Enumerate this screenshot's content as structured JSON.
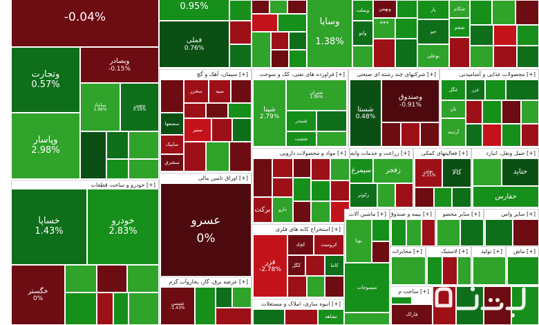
{
  "colors": {
    "green_light": "#2fa32a",
    "green": "#178f1b",
    "green_dark": "#0b4f14",
    "red": "#c4121b",
    "red_dark": "#6d0c12"
  },
  "tiles": {
    "t1": {
      "name": "",
      "pct": "-0.04%"
    },
    "t2": {
      "name": "وتجارت",
      "pct": "0.57%"
    },
    "t3": {
      "name": "وبصادر",
      "pct": "-0.15%"
    },
    "t4": {
      "name": "وپاسار",
      "pct": "2.98%"
    },
    "t5": {
      "name": "ساماد",
      "pct": "2.96%"
    },
    "t6": {
      "name": "ونوین",
      "pct": "0.54%"
    },
    "t7": {
      "name": "",
      "pct": "0.95%"
    },
    "t8": {
      "name": "فملی",
      "pct": "0.76%"
    },
    "t9": {
      "name": "وسایا",
      "pct": "1.38%"
    },
    "t10": {
      "name": "خساپا",
      "pct": "1.43%"
    },
    "t11": {
      "name": "خودرو",
      "pct": "2.83%"
    },
    "t12": {
      "name": "خگستر",
      "pct": "0%"
    },
    "t13": {
      "name": "عسرو",
      "pct": "0%"
    },
    "t14": {
      "name": "شپنا",
      "pct": "2.79%"
    },
    "t15": {
      "name": "شبندر",
      "pct": ""
    },
    "t16": {
      "name": "شتران",
      "pct": "1.99%"
    },
    "t17": {
      "name": "شفنت",
      "pct": ""
    },
    "t18": {
      "name": "شستا",
      "pct": "0.48%"
    },
    "t19": {
      "name": "وصندوق",
      "pct": "-0.91%"
    },
    "t20": {
      "name": "فزر",
      "pct": "-2.78%"
    },
    "t21": {
      "name": "کچاد",
      "pct": ""
    },
    "t22": {
      "name": "کرومیت",
      "pct": ""
    },
    "t23": {
      "name": "کگل",
      "pct": ""
    },
    "t24": {
      "name": "برکت",
      "pct": ""
    },
    "t25": {
      "name": "دارو",
      "pct": ""
    },
    "t26": {
      "name": "زفجر",
      "pct": ""
    },
    "t27": {
      "name": "سیمرغ",
      "pct": ""
    },
    "t28": {
      "name": "زکوثر",
      "pct": ""
    },
    "t29": {
      "name": "کالا",
      "pct": ""
    },
    "t30": {
      "name": "حتاید",
      "pct": ""
    },
    "t31": {
      "name": "حفارس",
      "pct": ""
    },
    "t32": {
      "name": "سخزر",
      "pct": ""
    },
    "t33": {
      "name": "سپه",
      "pct": ""
    },
    "t34": {
      "name": "سصفها",
      "pct": ""
    },
    "t35": {
      "name": "ساپیک",
      "pct": ""
    },
    "t36": {
      "name": "ستیر",
      "pct": ""
    },
    "t37": {
      "name": "سشرق",
      "pct": ""
    },
    "t38": {
      "name": "غگل",
      "pct": ""
    },
    "t39": {
      "name": "غزر",
      "pct": ""
    },
    "t40": {
      "name": "نان",
      "pct": ""
    },
    "t41": {
      "name": "آردینه",
      "pct": ""
    },
    "t42": {
      "name": "شکام",
      "pct": ""
    },
    "t43": {
      "name": "بوعلی",
      "pct": ""
    },
    "t44": {
      "name": "جم",
      "pct": ""
    },
    "t45": {
      "name": "شجم",
      "pct": ""
    },
    "t46": {
      "name": "پار",
      "pct": ""
    },
    "t47": {
      "name": "وبملت",
      "pct": ""
    },
    "t48": {
      "name": "ولتو",
      "pct": ""
    },
    "t49": {
      "name": "ونوتو",
      "pct": ""
    },
    "t50": {
      "name": "وبهمن",
      "pct": ""
    },
    "t51": {
      "name": "شمس",
      "pct": "-1.43%"
    },
    "t52": {
      "name": "تشاهد",
      "pct": ""
    },
    "t53": {
      "name": "منسوجات",
      "pct": ""
    },
    "t54": {
      "name": "فاراک",
      "pct": ""
    },
    "t55": {
      "name": "بویا",
      "pct": ""
    },
    "t56": {
      "name": "کاما",
      "pct": ""
    },
    "t57": {
      "name": "بوتن",
      "pct": "-2.11%"
    }
  },
  "sectors": {
    "s1": "[+] خودرو و ساخت قطعات",
    "s2": "[+] سیمان، آهک و گچ",
    "s3": "[+] فراورده های نفتی، کک و سوخت",
    "s4": "[+] شرکتهای چند رشته ای صنعتی",
    "s5": "[+] محصولات غذایی و آشامیدنی",
    "s6": "[+] اوراق تامین مالی",
    "s7": "[+] مواد و محصولات دارویی",
    "s8": "[+] زراعت و خدمات وابسته",
    "s9": "[+] فعالیتهای کمکی",
    "s10": "[+] حمل ونقل، انبارد",
    "s11": "[+] استخراج کانه های فلزی",
    "s12": "[+] عرضه برق، گاز، بخاروآب گرم",
    "s13": "[+] انبوه سازی، املاک و مستغلات",
    "s14": "[+] ماشین آلات",
    "s15": "[+] بیمه و صندوق",
    "s16": "[+] سایر محصو",
    "s17": "[+] سایر واس",
    "s18": "[+] مخابرات",
    "s19": "[+] لاستیک",
    "s20": "[+] تولید",
    "s21": "[+] ساخت م",
    "s22": "[+] ماش"
  }
}
